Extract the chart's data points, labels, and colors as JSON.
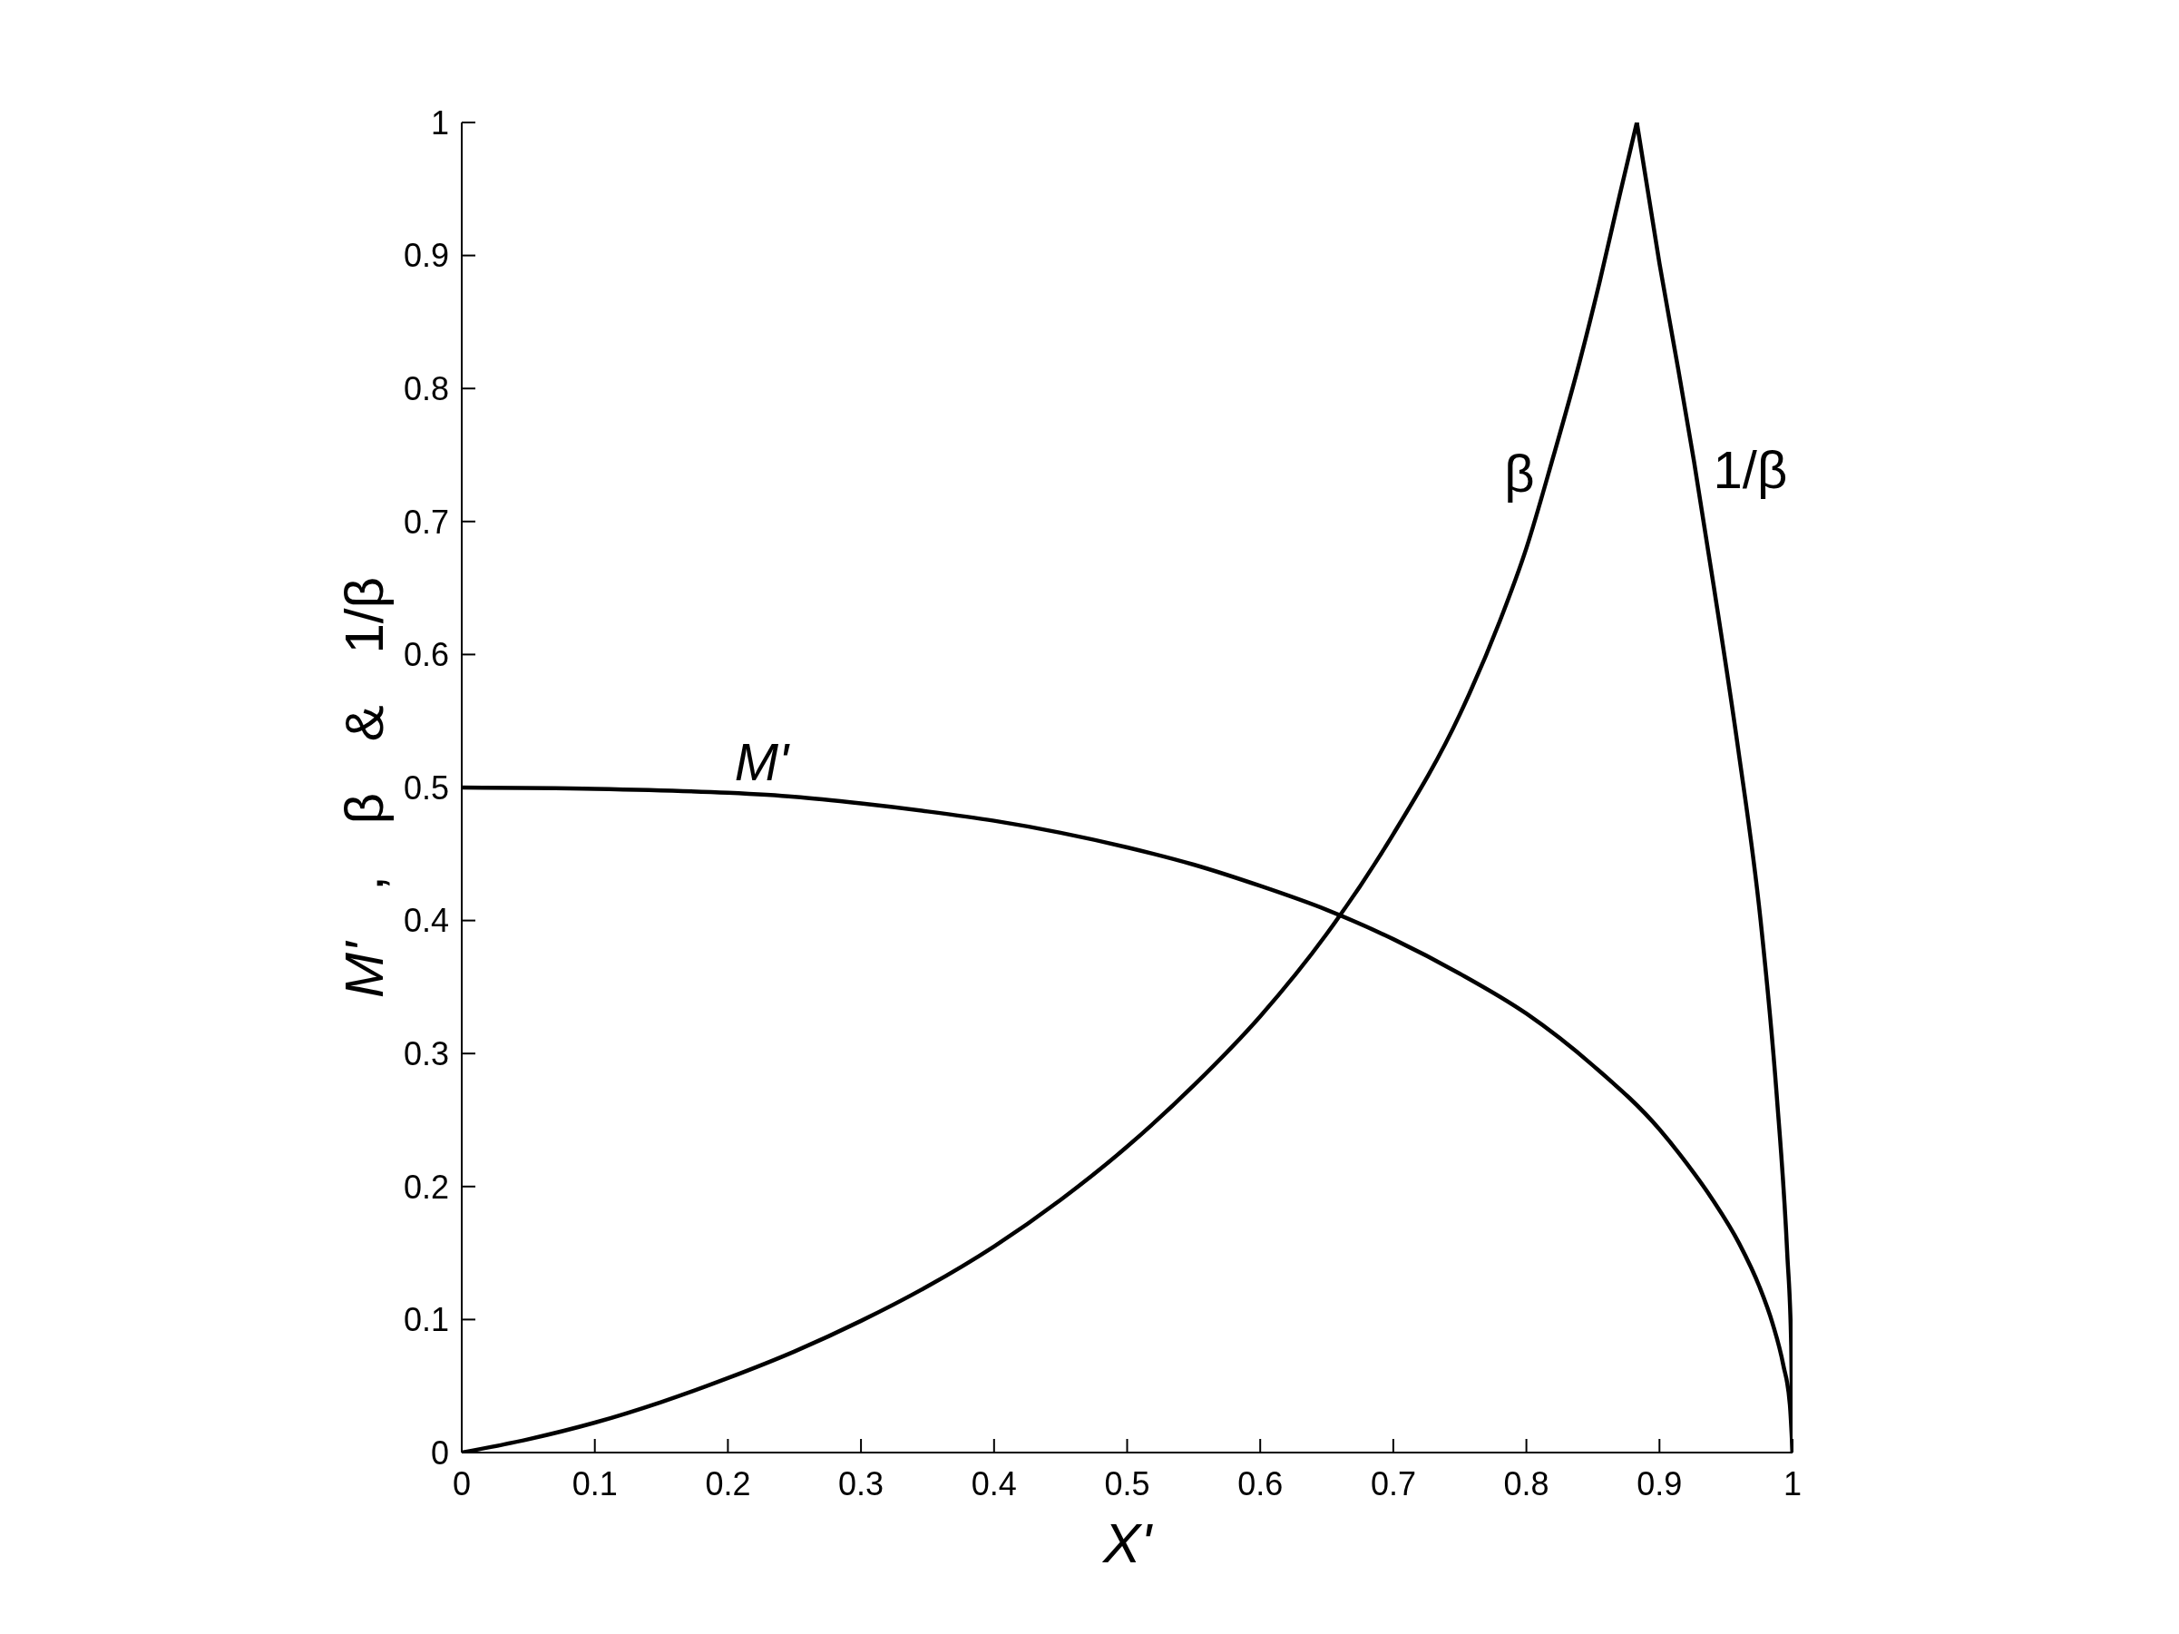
{
  "chart_data": {
    "type": "line",
    "xlabel": "X'",
    "ylabel": "M' , β & 1/β",
    "xlim": [
      0,
      1
    ],
    "ylim": [
      0,
      1
    ],
    "xticks": [
      0,
      0.1,
      0.2,
      0.3,
      0.4,
      0.5,
      0.6,
      0.7,
      0.8,
      0.9,
      1
    ],
    "yticks": [
      0,
      0.1,
      0.2,
      0.3,
      0.4,
      0.5,
      0.6,
      0.7,
      0.8,
      0.9,
      1
    ],
    "grid": false,
    "legend": false,
    "marker": "none",
    "line_style": "solid",
    "series": [
      {
        "name": "M'",
        "color": "#000000",
        "x": [
          0,
          0.1,
          0.2,
          0.25,
          0.3,
          0.35,
          0.4,
          0.45,
          0.5,
          0.55,
          0.6,
          0.65,
          0.7,
          0.75,
          0.8,
          0.85,
          0.9,
          0.92,
          0.94,
          0.96,
          0.975,
          0.985,
          0.993,
          0.998,
          1
        ],
        "values": [
          0.5,
          0.499,
          0.496,
          0.493,
          0.488,
          0.482,
          0.475,
          0.466,
          0.455,
          0.442,
          0.426,
          0.408,
          0.386,
          0.36,
          0.33,
          0.291,
          0.243,
          0.218,
          0.19,
          0.157,
          0.125,
          0.097,
          0.066,
          0.036,
          0
        ]
      },
      {
        "name": "β",
        "color": "#000000",
        "x": [
          0,
          0.05,
          0.1,
          0.15,
          0.2,
          0.25,
          0.3,
          0.35,
          0.4,
          0.45,
          0.5,
          0.55,
          0.6,
          0.65,
          0.7,
          0.75,
          0.78,
          0.8,
          0.82,
          0.84,
          0.855,
          0.87,
          0.883
        ],
        "values": [
          0,
          0.01,
          0.0225,
          0.038,
          0.056,
          0.076,
          0.099,
          0.125,
          0.155,
          0.19,
          0.23,
          0.276,
          0.328,
          0.39,
          0.465,
          0.555,
          0.625,
          0.68,
          0.748,
          0.82,
          0.88,
          0.945,
          1
        ]
      },
      {
        "name": "1/β",
        "color": "#000000",
        "x": [
          0.883,
          0.9,
          0.914,
          0.926,
          0.941,
          0.959,
          0.976,
          0.988,
          0.996,
          0.999,
          1
        ],
        "values": [
          1,
          0.894,
          0.815,
          0.745,
          0.65,
          0.53,
          0.4,
          0.27,
          0.15,
          0.08,
          0
        ]
      }
    ]
  }
}
